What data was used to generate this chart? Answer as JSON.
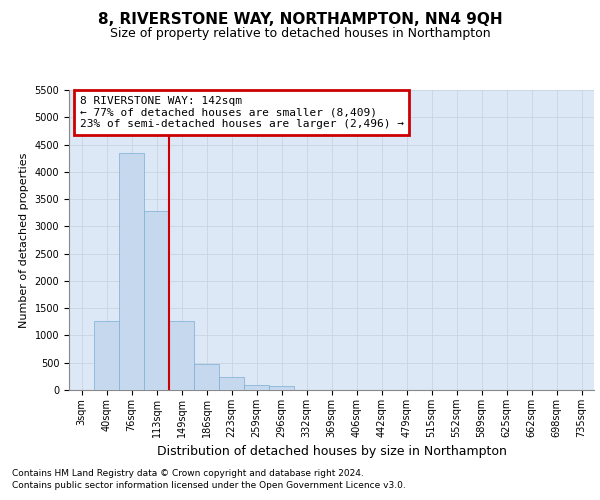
{
  "title1": "8, RIVERSTONE WAY, NORTHAMPTON, NN4 9QH",
  "title2": "Size of property relative to detached houses in Northampton",
  "xlabel": "Distribution of detached houses by size in Northampton",
  "ylabel": "Number of detached properties",
  "categories": [
    "3sqm",
    "40sqm",
    "76sqm",
    "113sqm",
    "149sqm",
    "186sqm",
    "223sqm",
    "259sqm",
    "296sqm",
    "332sqm",
    "369sqm",
    "406sqm",
    "442sqm",
    "479sqm",
    "515sqm",
    "552sqm",
    "589sqm",
    "625sqm",
    "662sqm",
    "698sqm",
    "735sqm"
  ],
  "values": [
    0,
    1270,
    4350,
    3280,
    1270,
    480,
    230,
    100,
    65,
    0,
    0,
    0,
    0,
    0,
    0,
    0,
    0,
    0,
    0,
    0,
    0
  ],
  "bar_color": "#c5d8ee",
  "bar_edge_color": "#7aaed4",
  "ylim": [
    0,
    5500
  ],
  "yticks": [
    0,
    500,
    1000,
    1500,
    2000,
    2500,
    3000,
    3500,
    4000,
    4500,
    5000,
    5500
  ],
  "annotation_box_text": "8 RIVERSTONE WAY: 142sqm\n← 77% of detached houses are smaller (8,409)\n23% of semi-detached houses are larger (2,496) →",
  "annotation_box_color": "#ffffff",
  "annotation_box_edge_color": "#cc0000",
  "grid_color": "#c8d4e0",
  "background_color": "#dce8f5",
  "footer1": "Contains HM Land Registry data © Crown copyright and database right 2024.",
  "footer2": "Contains public sector information licensed under the Open Government Licence v3.0.",
  "title1_fontsize": 11,
  "title2_fontsize": 9,
  "xlabel_fontsize": 9,
  "ylabel_fontsize": 8,
  "tick_fontsize": 7,
  "footer_fontsize": 6.5,
  "annot_fontsize": 8
}
